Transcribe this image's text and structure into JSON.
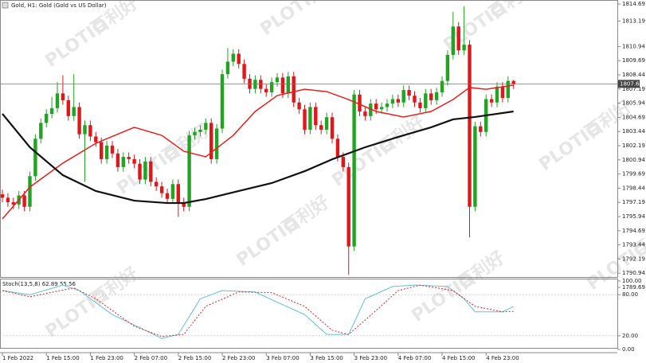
{
  "watermark": [
    "PLOTIO",
    "百利好"
  ],
  "chart_data": [
    {
      "type": "candlestick",
      "title": "Gold, H1:  Gold (Gold vs US Dollar)",
      "up_color": "#22a322",
      "down_color": "#e0161b",
      "open": [
        1797.9,
        1797.6,
        1797.2,
        1797.0,
        1797.8,
        1796.8,
        1799.5,
        1802.8,
        1804.2,
        1805.0,
        1805.5,
        1806.8,
        1806.2,
        1804.8,
        1805.6,
        1803.2,
        1804.0,
        1803.0,
        1802.5,
        1801.0,
        1802.2,
        1801.5,
        1800.3,
        1801.2,
        1801.0,
        1800.6,
        1799.2,
        1800.8,
        1799.0,
        1798.6,
        1798.0,
        1797.5,
        1798.8,
        1797.2,
        1796.8,
        1803.1,
        1803.4,
        1803.6,
        1804.2,
        1801.0,
        1803.7,
        1808.5,
        1809.6,
        1810.3,
        1809.4,
        1808.1,
        1807.2,
        1808.0,
        1807.2,
        1806.9,
        1807.8,
        1808.2,
        1806.8,
        1808.3,
        1806.0,
        1805.4,
        1803.6,
        1805.6,
        1804.0,
        1803.6,
        1804.7,
        1802.8,
        1801.2,
        1800.3,
        1793.3,
        1806.7,
        1805.2,
        1804.8,
        1805.9,
        1805.4,
        1805.6,
        1805.9,
        1806.3,
        1806.0,
        1807.1,
        1806.6,
        1806.0,
        1805.5,
        1806.8,
        1806.2,
        1806.9,
        1807.9,
        1810.2,
        1812.7,
        1810.6,
        1811.1,
        1796.8,
        1803.9,
        1803.4,
        1806.3,
        1806.0,
        1807.4,
        1806.4,
        1807.9
      ],
      "high": [
        1798.3,
        1798.0,
        1797.6,
        1798.2,
        1798.2,
        1799.9,
        1803.2,
        1804.6,
        1805.4,
        1806.5,
        1807.8,
        1808.4,
        1806.6,
        1808.5,
        1806.0,
        1804.4,
        1804.4,
        1803.4,
        1802.9,
        1802.6,
        1802.6,
        1801.9,
        1801.6,
        1801.6,
        1801.4,
        1801.0,
        1801.2,
        1801.2,
        1799.4,
        1799.0,
        1798.4,
        1799.2,
        1799.2,
        1797.6,
        1803.5,
        1803.8,
        1804.0,
        1804.6,
        1804.6,
        1804.1,
        1808.9,
        1810.8,
        1810.7,
        1810.7,
        1809.8,
        1808.5,
        1808.4,
        1808.4,
        1807.6,
        1808.2,
        1808.6,
        1808.6,
        1808.7,
        1808.7,
        1806.4,
        1805.8,
        1806.0,
        1806.0,
        1804.4,
        1805.1,
        1805.1,
        1803.2,
        1801.6,
        1800.7,
        1807.1,
        1807.1,
        1805.6,
        1806.3,
        1806.3,
        1806.0,
        1806.3,
        1806.7,
        1806.7,
        1807.5,
        1807.5,
        1807.0,
        1806.4,
        1807.2,
        1807.2,
        1807.3,
        1808.3,
        1810.6,
        1814.0,
        1813.1,
        1814.5,
        1811.5,
        1804.3,
        1804.3,
        1806.7,
        1806.7,
        1807.8,
        1807.8,
        1808.3,
        1808.0
      ],
      "low": [
        1797.2,
        1796.8,
        1796.6,
        1796.6,
        1796.4,
        1796.4,
        1799.1,
        1802.4,
        1803.8,
        1804.6,
        1805.1,
        1805.8,
        1804.4,
        1804.4,
        1802.8,
        1799.0,
        1802.6,
        1802.1,
        1800.6,
        1800.6,
        1801.1,
        1799.9,
        1799.9,
        1800.6,
        1800.2,
        1798.8,
        1798.8,
        1798.6,
        1798.2,
        1797.6,
        1797.1,
        1797.1,
        1795.9,
        1796.4,
        1796.4,
        1802.7,
        1803.0,
        1803.2,
        1800.6,
        1800.6,
        1803.3,
        1808.1,
        1809.2,
        1809.0,
        1807.7,
        1806.8,
        1806.8,
        1806.8,
        1806.5,
        1806.5,
        1807.4,
        1806.4,
        1806.4,
        1805.6,
        1805.0,
        1803.2,
        1803.2,
        1803.6,
        1803.2,
        1803.2,
        1802.4,
        1800.8,
        1799.9,
        1790.8,
        1792.9,
        1804.8,
        1804.4,
        1804.4,
        1805.0,
        1805.0,
        1805.2,
        1805.5,
        1805.6,
        1805.6,
        1806.2,
        1805.6,
        1805.1,
        1805.1,
        1805.8,
        1805.8,
        1806.5,
        1807.5,
        1809.8,
        1810.2,
        1810.2,
        1794.1,
        1796.4,
        1803.0,
        1803.0,
        1805.6,
        1805.6,
        1806.0,
        1806.0,
        1807.2
      ],
      "close": [
        1797.6,
        1797.2,
        1797.0,
        1797.8,
        1796.8,
        1799.5,
        1802.8,
        1804.2,
        1805.0,
        1805.5,
        1806.8,
        1806.2,
        1804.8,
        1805.6,
        1803.2,
        1804.0,
        1803.0,
        1802.5,
        1801.0,
        1802.2,
        1801.5,
        1800.3,
        1801.2,
        1801.0,
        1800.6,
        1799.2,
        1800.8,
        1799.0,
        1798.6,
        1798.0,
        1797.5,
        1798.8,
        1797.2,
        1796.8,
        1803.1,
        1803.4,
        1803.6,
        1804.2,
        1801.0,
        1803.7,
        1808.5,
        1809.6,
        1810.3,
        1809.4,
        1808.1,
        1807.2,
        1808.0,
        1807.2,
        1806.9,
        1807.8,
        1808.2,
        1806.8,
        1808.3,
        1806.0,
        1805.4,
        1803.6,
        1805.6,
        1804.0,
        1803.6,
        1804.7,
        1802.8,
        1801.2,
        1800.3,
        1793.3,
        1806.7,
        1805.2,
        1804.8,
        1805.9,
        1805.4,
        1805.6,
        1805.9,
        1806.3,
        1806.0,
        1807.1,
        1806.6,
        1806.0,
        1805.5,
        1806.8,
        1806.2,
        1806.9,
        1807.9,
        1810.2,
        1812.7,
        1810.6,
        1811.1,
        1796.8,
        1803.9,
        1803.4,
        1806.3,
        1806.0,
        1807.4,
        1806.4,
        1807.9,
        1807.64
      ],
      "overlays": [
        {
          "color": "#e8211f",
          "x": [
            0,
            5,
            11,
            17,
            24,
            29,
            33,
            37,
            42,
            46,
            50,
            55,
            59,
            63,
            68,
            73,
            78,
            82,
            85,
            88,
            93
          ],
          "values": [
            1795.73,
            1798.54,
            1800.65,
            1802.4,
            1803.81,
            1803.1,
            1801.7,
            1801.21,
            1803.1,
            1805.21,
            1806.61,
            1807.17,
            1806.96,
            1806.26,
            1805.21,
            1804.72,
            1805.21,
            1806.26,
            1807.32,
            1807.17,
            1807.53
          ]
        },
        {
          "color": "#111111",
          "x": [
            0,
            5,
            11,
            17,
            24,
            30,
            33,
            37,
            43,
            49,
            55,
            60,
            66,
            72,
            78,
            82,
            86,
            93
          ],
          "values": [
            1805.0,
            1802.05,
            1799.59,
            1798.19,
            1797.34,
            1797.13,
            1797.13,
            1797.48,
            1798.19,
            1798.89,
            1799.94,
            1800.99,
            1802.05,
            1802.96,
            1803.81,
            1804.51,
            1804.72,
            1805.21
          ]
        }
      ],
      "ylim": [
        1789.27,
        1815.04
      ],
      "yticks": [
        1814.69,
        1813.19,
        1810.94,
        1809.69,
        1808.44,
        1807.19,
        1805.94,
        1804.69,
        1803.44,
        1802.19,
        1800.94,
        1799.69,
        1798.44,
        1797.19,
        1795.94,
        1794.69,
        1793.44,
        1792.19,
        1790.94,
        1789.69
      ],
      "xticks": [
        {
          "value": 0,
          "label": "1 Feb 2022"
        },
        {
          "value": 8,
          "label": "1 Feb 15:00"
        },
        {
          "value": 16,
          "label": "1 Feb 23:00"
        },
        {
          "value": 24,
          "label": "2 Feb 07:00"
        },
        {
          "value": 32,
          "label": "2 Feb 15:00"
        },
        {
          "value": 40,
          "label": "2 Feb 23:00"
        },
        {
          "value": 48,
          "label": "3 Feb 07:00"
        },
        {
          "value": 56,
          "label": "3 Feb 15:00"
        },
        {
          "value": 64,
          "label": "3 Feb 23:00"
        },
        {
          "value": 72,
          "label": "4 Feb 07:00"
        },
        {
          "value": 80,
          "label": "4 Feb 15:00"
        },
        {
          "value": 88,
          "label": "4 Feb 23:00"
        }
      ]
    },
    {
      "type": "line",
      "title": "Stoch(13,5,8) 62.89 55.56",
      "series": [
        {
          "color": "#5fc3d6",
          "style": "solid",
          "x": [
            0,
            5,
            11,
            14,
            20,
            26,
            29,
            32,
            36,
            40,
            46,
            50,
            55,
            59,
            63,
            66,
            71,
            75,
            81,
            84,
            86,
            91,
            93
          ],
          "values": [
            86,
            80,
            94,
            86,
            51,
            28,
            16,
            22,
            74,
            86,
            84,
            69,
            51,
            22,
            22,
            74,
            92,
            94,
            92,
            74,
            55,
            55,
            62.89
          ]
        },
        {
          "color": "#e8211f",
          "style": "dashed",
          "x": [
            0,
            5,
            13,
            17,
            24,
            29,
            33,
            37,
            43,
            49,
            55,
            60,
            63,
            68,
            72,
            76,
            82,
            86,
            91,
            93
          ],
          "values": [
            86,
            77,
            90,
            74,
            34,
            19,
            22,
            63,
            84,
            83,
            63,
            28,
            22,
            57,
            86,
            94,
            86,
            63,
            55,
            55.56
          ]
        }
      ],
      "ylim": [
        0,
        100
      ],
      "yticks": [
        {
          "value": 100,
          "label": "100.00"
        },
        {
          "value": 80,
          "label": "80.00"
        },
        {
          "value": 20,
          "label": "20.00"
        },
        {
          "value": 0,
          "label": "0.00"
        }
      ],
      "levels": [
        80,
        20
      ]
    }
  ]
}
